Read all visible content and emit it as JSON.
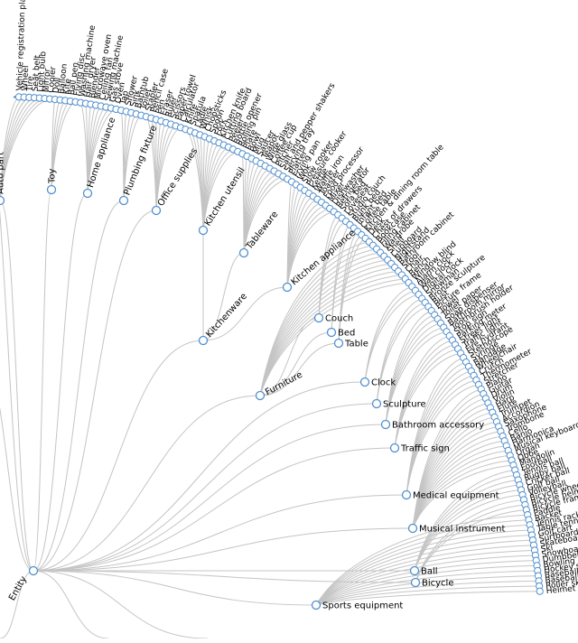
{
  "root": {
    "label": "Entity"
  },
  "colors": {
    "node_stroke": "#4f8fcf",
    "link": "#c4c4c4",
    "text": "#000000"
  },
  "categories": [
    {
      "id": "auto-part",
      "label": "Auto part"
    },
    {
      "id": "toy",
      "label": "Toy"
    },
    {
      "id": "home-appliance",
      "label": "Home appliance"
    },
    {
      "id": "plumbing-fixture",
      "label": "Plumbing fixture"
    },
    {
      "id": "office-supplies",
      "label": "Office supplies"
    },
    {
      "id": "kitchen-utensil",
      "label": "Kitchen utensil"
    },
    {
      "id": "tableware",
      "label": "Tableware"
    },
    {
      "id": "kitchenware",
      "label": "Kitchenware"
    },
    {
      "id": "kitchen-appliance",
      "label": "Kitchen appliance"
    },
    {
      "id": "couch",
      "label": "Couch"
    },
    {
      "id": "bed",
      "label": "Bed"
    },
    {
      "id": "table",
      "label": "Table"
    },
    {
      "id": "furniture",
      "label": "Furniture"
    },
    {
      "id": "clock",
      "label": "Clock"
    },
    {
      "id": "sculpture",
      "label": "Sculpture"
    },
    {
      "id": "bathroom-accessory",
      "label": "Bathroom accessory"
    },
    {
      "id": "traffic-sign",
      "label": "Traffic sign"
    },
    {
      "id": "medical-equipment",
      "label": "Medical equipment"
    },
    {
      "id": "musical-instrument",
      "label": "Musical instrument"
    },
    {
      "id": "ball",
      "label": "Ball"
    },
    {
      "id": "bicycle",
      "label": "Bicycle"
    },
    {
      "id": "sports-equipment",
      "label": "Sports equipment"
    }
  ],
  "leaves": [
    "Vehicle registration plate",
    "Wheel",
    "Tire",
    "Seat belt",
    "Light bulb",
    "Mirror",
    "Cooler",
    "Doll",
    "Balloon",
    "Kite",
    "Ball pen",
    "Flying disc",
    "Washing machine",
    "Hair dryer",
    "Blender",
    "Microwave oven",
    "Ceiling fan",
    "Sewing machine",
    "Gas stove",
    "Oven",
    "Tap",
    "Shower",
    "Sink",
    "Bathtub",
    "Toilet",
    "Stapler",
    "Pencil case",
    "Pen",
    "Eraser",
    "Ruler",
    "Scissors",
    "Paper towel",
    "Calculator",
    "Knife",
    "Spatula",
    "Ladle",
    "Whisk",
    "Chopsticks",
    "Spoon",
    "Fork",
    "Kitchen knife",
    "Cutting board",
    "Peeler",
    "Bottle opener",
    "Rolling pin",
    "Plate",
    "Bowl",
    "Mug",
    "Saucer",
    "Teapot",
    "Wine glass",
    "Coffee cup",
    "Pitcher",
    "Salt and pepper shakers",
    "Serving tray",
    "Platter",
    "Frying pan",
    "Wok",
    "Slow cooker",
    "Pressure cooker",
    "Kettle",
    "Waffle iron",
    "Toaster",
    "Food processor",
    "Mixer",
    "Dishwasher",
    "Refrigerator",
    "Sofa bed",
    "Loveseat",
    "Studio couch",
    "Bunk bed",
    "Infant bed",
    "Coffee table",
    "Kitchen & dining room table",
    "Desk",
    "Chest of drawers",
    "Bookcase",
    "Filing cabinet",
    "Wardrobe",
    "Shelf",
    "Cupboard",
    "Nightstand",
    "Bathroom cabinet",
    "Stool",
    "Chair",
    "Bench",
    "Window blind",
    "Alarm clock",
    "Wall clock",
    "Digital clock",
    "Snowman",
    "Bronze sculpture",
    "Bust",
    "Picture frame",
    "Towel",
    "Toilet paper",
    "Soap dispenser",
    "Bathroom mirror",
    "Toothbrush holder",
    "Stop sign",
    "Parking meter",
    "Street light",
    "Traffic light",
    "Fire hydrant",
    "Stethoscope",
    "Syringe",
    "Bandage",
    "Wheelchair",
    "Crutch",
    "Thermometer",
    "Stretcher",
    "Piano",
    "Guitar",
    "Drum",
    "Violin",
    "Harp",
    "Flute",
    "Trumpet",
    "Accordion",
    "Saxophone",
    "Trombone",
    "Cello",
    "Banjo",
    "Harmonica",
    "Musical keyboard",
    "Organ",
    "Oboe",
    "Mandolin",
    "Football",
    "Tennis ball",
    "Rugby ball",
    "Cricket ball",
    "Golf ball",
    "Volleyball",
    "Bicycle wheel",
    "Bicycle helmet",
    "Bicycle frame",
    "Paddle",
    "Racket",
    "Tennis racket",
    "Table tennis racket",
    "Golf cart",
    "Surfboard",
    "Skateboard",
    "Ski",
    "Snowboard",
    "Dumbbell",
    "Bowling equipment",
    "Hockey stick",
    "Baseball bat",
    "Baseball glove",
    "Roller skates",
    "Helmet"
  ]
}
